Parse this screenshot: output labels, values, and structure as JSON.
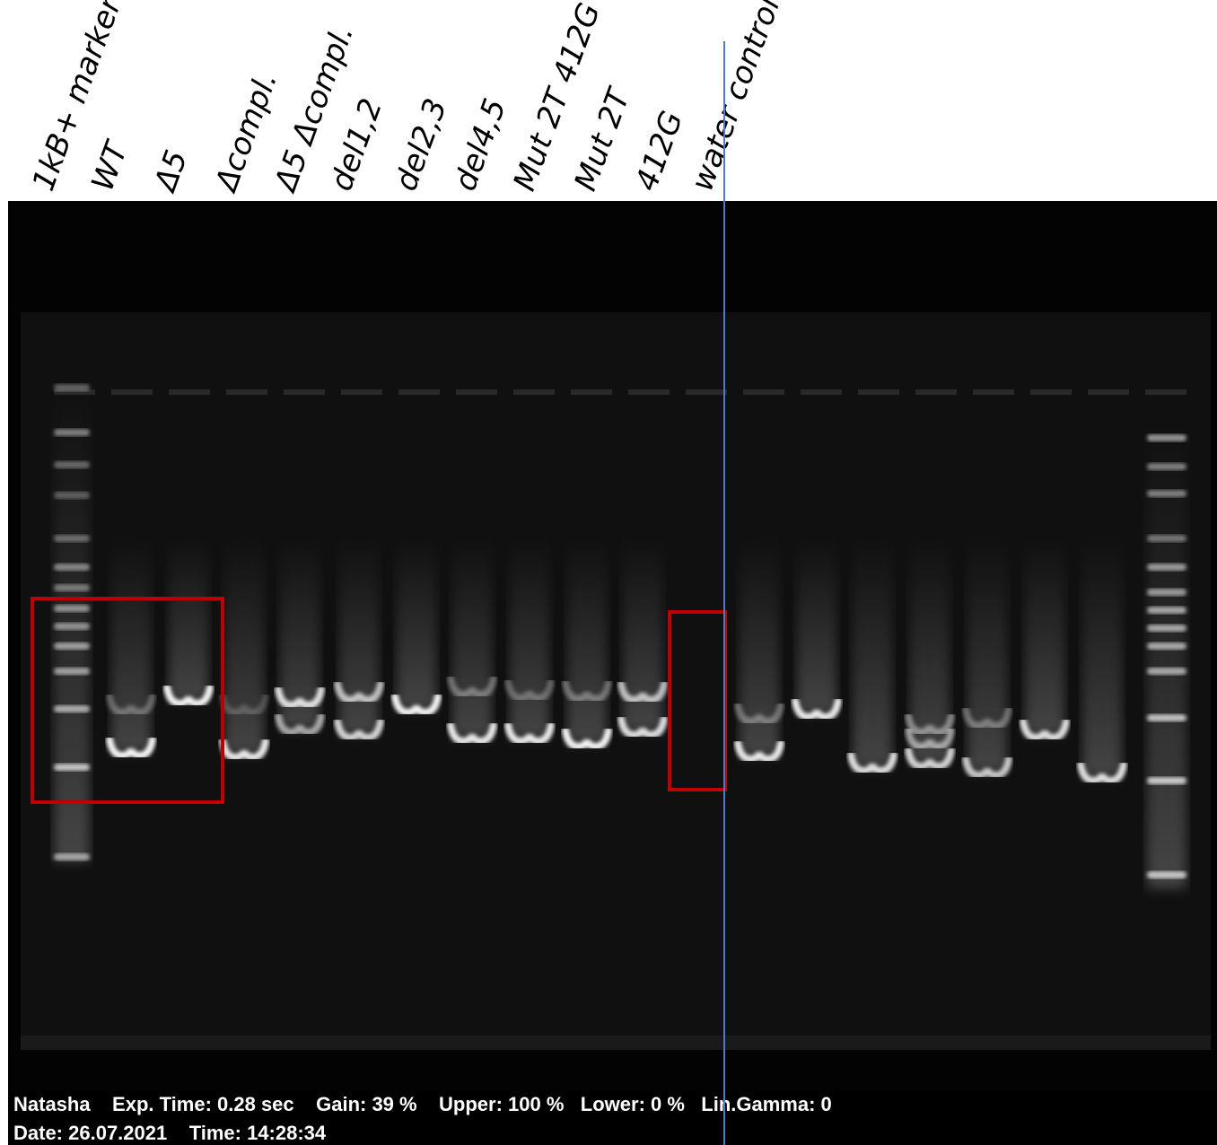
{
  "lane_labels": [
    "1kB+ marker",
    "WT",
    "Δ5",
    "Δcompl.",
    "Δ5 Δcompl.",
    "del1,2",
    "del2,3",
    "del4,5",
    "Mut 2T 412G",
    "Mut 2T",
    "412G",
    "water control"
  ],
  "footer": {
    "user": "Natasha",
    "exp_time": "Exp. Time: 0.28 sec",
    "gain": "Gain: 39 %",
    "upper": "Upper: 100 %",
    "lower": "Lower: 0 %",
    "gamma": "Lin.Gamma: 0",
    "date": "Date: 26.07.2021",
    "time": "Time: 14:28:34"
  },
  "colors": {
    "gel_background": "#030303",
    "band": "#ffffff",
    "highlight_box": "#c00000",
    "divider": "#4a7cc8"
  }
}
